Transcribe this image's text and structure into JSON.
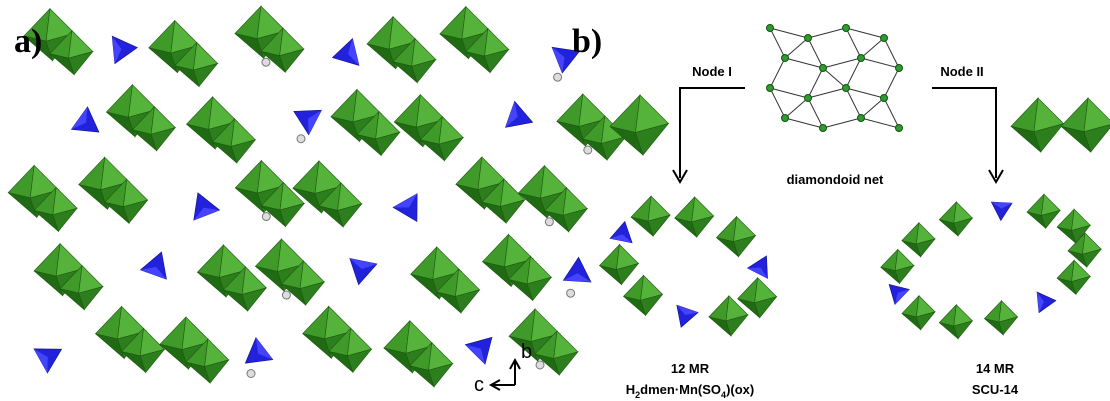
{
  "panel_a": {
    "label": "a)",
    "axes": {
      "up": "b",
      "left": "c"
    }
  },
  "panel_b": {
    "label": "b)",
    "node_1": "Node I",
    "node_2": "Node II",
    "net_caption": "diamondoid net",
    "ring_1": {
      "size": "12 MR",
      "formula": [
        "H",
        "2",
        "dmen·Mn(SO",
        "4",
        ")(ox)"
      ]
    },
    "ring_2": {
      "size": "14 MR",
      "name": "SCU-14"
    }
  }
}
